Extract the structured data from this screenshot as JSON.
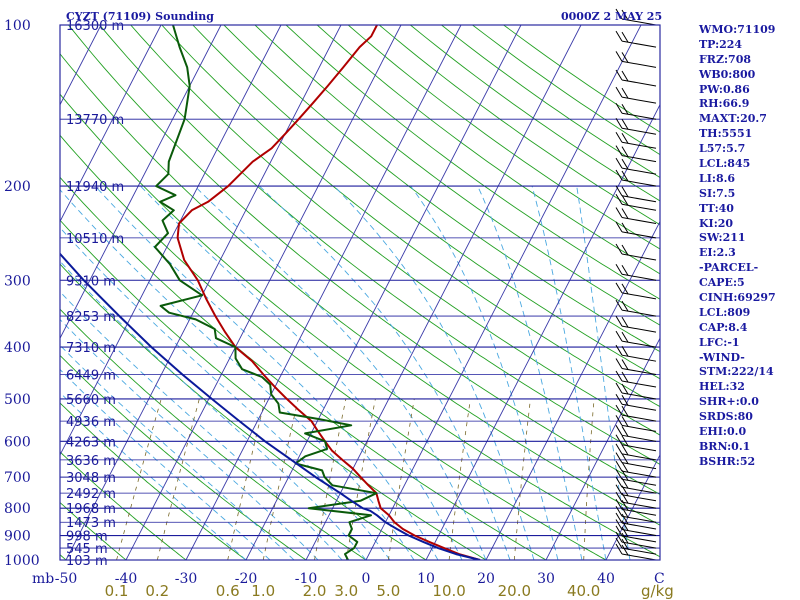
{
  "title": "CYZT (71109) Sounding",
  "time": "0000Z  2 MAY 25",
  "colors": {
    "frame": "#2a2aa0",
    "isobar": "#1c1c9c",
    "isotherm": "#3a3aa8",
    "dry_adiabat": "#22a022",
    "moist_adiabat": "#4aa8e0",
    "mixing_ratio": "#7a6a2a",
    "temperature": "#b00000",
    "dewpoint": "#0a5a0a",
    "parcel": "#0a1a9a",
    "text": "#1a1aa0",
    "mixing_label": "#8a7a20"
  },
  "chart_data": {
    "type": "line",
    "title": "CYZT (71109) Sounding",
    "subtitle": "0000Z  2 MAY 25",
    "ylabel": "mb",
    "xlabel": "",
    "x_unit": "°C",
    "y_scale": "log",
    "ylim": [
      1000,
      100
    ],
    "xlim": [
      -50,
      50
    ],
    "skew": "skew-T",
    "pressure_ticks": [
      100,
      200,
      300,
      400,
      500,
      600,
      700,
      800,
      900,
      1000
    ],
    "pressure_tick_labels": [
      "100",
      "200",
      "300",
      "400",
      "500",
      "600",
      "700",
      "800",
      "900",
      "1000"
    ],
    "axis_unit_label": "mb",
    "temperature_ticks": [
      -50,
      -40,
      -30,
      -20,
      -10,
      0,
      10,
      20,
      30,
      40
    ],
    "temperature_tick_labels": [
      "-50",
      "-40",
      "-30",
      "-20",
      "-10",
      "0",
      "10",
      "20",
      "30",
      "40"
    ],
    "temperature_unit_label": "C",
    "mixing_ratio_labels": [
      "0.1",
      "0.2",
      "0.6",
      "1.0",
      "2.0",
      "3.0",
      "5.0",
      "10.0",
      "20.0",
      "40.0"
    ],
    "mixing_ratio_unit": "g/kg",
    "altitude_labels": [
      {
        "text": "103 m",
        "p": 1000
      },
      {
        "text": "545 m",
        "p": 950
      },
      {
        "text": "998 m",
        "p": 900
      },
      {
        "text": "1473 m",
        "p": 850
      },
      {
        "text": "1968 m",
        "p": 800
      },
      {
        "text": "2492 m",
        "p": 750
      },
      {
        "text": "3048 m",
        "p": 700
      },
      {
        "text": "3636 m",
        "p": 650
      },
      {
        "text": "4263 m",
        "p": 600
      },
      {
        "text": "4936 m",
        "p": 550
      },
      {
        "text": "5660 m",
        "p": 500
      },
      {
        "text": "6449 m",
        "p": 450
      },
      {
        "text": "7310 m",
        "p": 400
      },
      {
        "text": "8253 m",
        "p": 350
      },
      {
        "text": "9310 m",
        "p": 300
      },
      {
        "text": "10510 m",
        "p": 250
      },
      {
        "text": "11940 m",
        "p": 200
      },
      {
        "text": "13770 m",
        "p": 150
      },
      {
        "text": "16300 m",
        "p": 100
      }
    ],
    "series": [
      {
        "name": "Temperature",
        "points": [
          [
            1000,
            19
          ],
          [
            975,
            15
          ],
          [
            950,
            12
          ],
          [
            925,
            9
          ],
          [
            900,
            6
          ],
          [
            875,
            3.5
          ],
          [
            850,
            1.5
          ],
          [
            825,
            0
          ],
          [
            800,
            -2
          ],
          [
            775,
            -3
          ],
          [
            750,
            -4
          ],
          [
            725,
            -6
          ],
          [
            700,
            -8
          ],
          [
            675,
            -10
          ],
          [
            650,
            -12.5
          ],
          [
            625,
            -15
          ],
          [
            600,
            -17
          ],
          [
            575,
            -19
          ],
          [
            550,
            -21
          ],
          [
            525,
            -24
          ],
          [
            500,
            -27
          ],
          [
            475,
            -30
          ],
          [
            450,
            -33
          ],
          [
            425,
            -36
          ],
          [
            400,
            -40
          ],
          [
            375,
            -43
          ],
          [
            350,
            -46
          ],
          [
            325,
            -49
          ],
          [
            300,
            -52
          ],
          [
            275,
            -56
          ],
          [
            250,
            -59
          ],
          [
            235,
            -60
          ],
          [
            222,
            -59
          ],
          [
            214,
            -57
          ],
          [
            200,
            -55
          ],
          [
            180,
            -53
          ],
          [
            170,
            -51
          ],
          [
            160,
            -50
          ],
          [
            150,
            -49
          ],
          [
            140,
            -48
          ],
          [
            130,
            -47
          ],
          [
            120,
            -46
          ],
          [
            110,
            -45
          ],
          [
            105,
            -44
          ],
          [
            100,
            -44
          ]
        ]
      },
      {
        "name": "Dew point",
        "points": [
          [
            1000,
            -3
          ],
          [
            975,
            -4
          ],
          [
            950,
            -3
          ],
          [
            925,
            -3
          ],
          [
            900,
            -5
          ],
          [
            875,
            -5
          ],
          [
            850,
            -6
          ],
          [
            825,
            -3
          ],
          [
            800,
            -14
          ],
          [
            775,
            -6
          ],
          [
            750,
            -4
          ],
          [
            725,
            -12
          ],
          [
            700,
            -14
          ],
          [
            680,
            -15
          ],
          [
            660,
            -20
          ],
          [
            640,
            -19
          ],
          [
            620,
            -16
          ],
          [
            600,
            -17
          ],
          [
            580,
            -21
          ],
          [
            560,
            -14
          ],
          [
            545,
            -20
          ],
          [
            530,
            -27
          ],
          [
            510,
            -28
          ],
          [
            490,
            -30
          ],
          [
            470,
            -31
          ],
          [
            455,
            -33
          ],
          [
            440,
            -37
          ],
          [
            420,
            -39
          ],
          [
            400,
            -40
          ],
          [
            385,
            -44
          ],
          [
            370,
            -45
          ],
          [
            355,
            -49
          ],
          [
            345,
            -54
          ],
          [
            335,
            -56
          ],
          [
            320,
            -50
          ],
          [
            300,
            -55
          ],
          [
            280,
            -58
          ],
          [
            260,
            -62
          ],
          [
            245,
            -61
          ],
          [
            232,
            -63
          ],
          [
            222,
            -62
          ],
          [
            214,
            -65
          ],
          [
            208,
            -63
          ],
          [
            200,
            -67
          ],
          [
            190,
            -66
          ],
          [
            180,
            -67
          ],
          [
            150,
            -68
          ],
          [
            130,
            -70
          ],
          [
            120,
            -72
          ],
          [
            110,
            -75
          ],
          [
            100,
            -78
          ]
        ]
      },
      {
        "name": "Parcel",
        "points": [
          [
            1000,
            19
          ],
          [
            975,
            14.5
          ],
          [
            950,
            11
          ],
          [
            925,
            8
          ],
          [
            900,
            5
          ],
          [
            875,
            2.5
          ],
          [
            850,
            0
          ],
          [
            825,
            -2
          ],
          [
            809,
            -3.5
          ],
          [
            800,
            -5
          ],
          [
            775,
            -7.5
          ],
          [
            750,
            -10
          ],
          [
            700,
            -15.5
          ],
          [
            650,
            -21
          ],
          [
            600,
            -27
          ],
          [
            550,
            -33
          ],
          [
            500,
            -39.5
          ],
          [
            450,
            -46.5
          ],
          [
            400,
            -54
          ],
          [
            350,
            -62
          ],
          [
            300,
            -71
          ],
          [
            250,
            -81
          ],
          [
            200,
            -92
          ],
          [
            150,
            -103
          ],
          [
            120,
            -113
          ],
          [
            100,
            -119
          ]
        ]
      }
    ],
    "wind_barbs": [
      {
        "p": 1000
      },
      {
        "p": 975
      },
      {
        "p": 950
      },
      {
        "p": 925
      },
      {
        "p": 900
      },
      {
        "p": 875
      },
      {
        "p": 850
      },
      {
        "p": 825
      },
      {
        "p": 800
      },
      {
        "p": 775
      },
      {
        "p": 750
      },
      {
        "p": 725
      },
      {
        "p": 700
      },
      {
        "p": 675
      },
      {
        "p": 650
      },
      {
        "p": 625
      },
      {
        "p": 600
      },
      {
        "p": 575
      },
      {
        "p": 550
      },
      {
        "p": 525
      },
      {
        "p": 500
      },
      {
        "p": 475
      },
      {
        "p": 450
      },
      {
        "p": 425
      },
      {
        "p": 400
      },
      {
        "p": 375
      },
      {
        "p": 350
      },
      {
        "p": 325
      },
      {
        "p": 300
      },
      {
        "p": 275
      },
      {
        "p": 250
      },
      {
        "p": 235
      },
      {
        "p": 222
      },
      {
        "p": 214
      },
      {
        "p": 200
      },
      {
        "p": 190
      },
      {
        "p": 180
      },
      {
        "p": 170
      },
      {
        "p": 160
      },
      {
        "p": 150
      },
      {
        "p": 140
      },
      {
        "p": 130
      },
      {
        "p": 120
      },
      {
        "p": 110
      },
      {
        "p": 100
      }
    ]
  },
  "indices": [
    "WMO:71109",
    "TP:224",
    "FRZ:708",
    "WB0:800",
    "PW:0.86",
    "RH:66.9",
    "MAXT:20.7",
    "TH:5551",
    "L57:5.7",
    "LCL:845",
    "LI:8.6",
    "SI:7.5",
    "TT:40",
    "KI:20",
    "SW:211",
    "EI:2.3",
    "-PARCEL-",
    "CAPE:5",
    "CINH:69297",
    "LCL:809",
    "CAP:8.4",
    "LFC:-1",
    "-WIND-",
    "STM:222/14",
    "HEL:32",
    "SHR+:0.0",
    "SRDS:80",
    "EHI:0.0",
    "BRN:0.1",
    "BSHR:52"
  ]
}
